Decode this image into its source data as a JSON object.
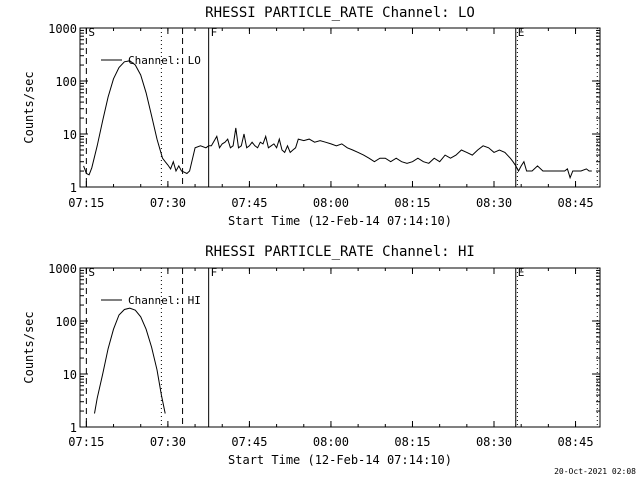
{
  "footer": {
    "timestamp": "20-Oct-2021 02:08"
  },
  "chart_data": [
    {
      "type": "line",
      "title": "RHESSI PARTICLE_RATE Channel: LO",
      "xlabel": "Start Time (12-Feb-14 07:14:10)",
      "ylabel": "Counts/sec",
      "ylog": true,
      "xlim": [
        -0.17,
        95.5
      ],
      "ylim": [
        1,
        1000
      ],
      "xtick_positions": [
        1,
        16,
        31,
        46,
        61,
        76,
        91
      ],
      "xtick_labels": [
        "07:15",
        "07:30",
        "07:45",
        "08:00",
        "08:15",
        "08:30",
        "08:45"
      ],
      "ytick_values": [
        1,
        10,
        100,
        1000
      ],
      "ytick_labels": [
        "1",
        "10",
        "100",
        "1000"
      ],
      "legend": {
        "label": "Channel: LO",
        "position": "top-left"
      },
      "markers": [
        {
          "x": 1.0,
          "style": "dashed",
          "label": "S"
        },
        {
          "x": 14.8,
          "style": "dotted",
          "label": ""
        },
        {
          "x": 18.7,
          "style": "dashed",
          "label": ""
        },
        {
          "x": 23.5,
          "style": "solid",
          "label": "F"
        },
        {
          "x": 80.0,
          "style": "solid",
          "label": "E"
        },
        {
          "x": 80.3,
          "style": "dotted",
          "label": ""
        },
        {
          "x": 95.0,
          "style": "dotted",
          "label": ""
        }
      ],
      "series": [
        {
          "name": "Channel: LO",
          "x": [
            0.5,
            1.0,
            1.5,
            2.0,
            3.0,
            4.0,
            5.0,
            6.0,
            7.0,
            8.0,
            9.0,
            10.0,
            11.0,
            12.0,
            13.0,
            14.0,
            15.0,
            15.5,
            16.0,
            16.5,
            17.0,
            17.5,
            18.0,
            18.5,
            19.0,
            19.5,
            20.0,
            21.0,
            22.0,
            23.0,
            23.5,
            24.0,
            25.0,
            25.5,
            26.0,
            26.5,
            27.0,
            27.5,
            28.0,
            28.5,
            29.0,
            29.5,
            30.0,
            30.5,
            31.0,
            31.5,
            32.0,
            32.5,
            33.0,
            33.5,
            34.0,
            34.5,
            35.0,
            35.5,
            36.0,
            36.5,
            37.0,
            37.5,
            38.0,
            38.5,
            39.0,
            39.5,
            40.0,
            41.0,
            42.0,
            43.0,
            44.0,
            45.0,
            46.0,
            47.0,
            48.0,
            49.0,
            50.0,
            51.0,
            52.0,
            53.0,
            54.0,
            55.0,
            56.0,
            57.0,
            58.0,
            59.0,
            60.0,
            61.0,
            62.0,
            63.0,
            64.0,
            65.0,
            66.0,
            67.0,
            68.0,
            69.0,
            70.0,
            71.0,
            72.0,
            73.0,
            74.0,
            75.0,
            76.0,
            77.0,
            78.0,
            79.0,
            79.5,
            80.0,
            80.5,
            81.0,
            81.5,
            82.0,
            83.0,
            84.0,
            85.0,
            86.0,
            87.0,
            88.0,
            89.0,
            89.5,
            90.0,
            90.5,
            91.0,
            92.0,
            93.0,
            93.5,
            94.0
          ],
          "y": [
            2.5,
            1.8,
            1.7,
            2.3,
            6,
            18,
            50,
            110,
            180,
            230,
            240,
            200,
            130,
            60,
            22,
            8,
            3.5,
            3.0,
            2.6,
            2.2,
            3.0,
            2.0,
            2.5,
            2.0,
            1.9,
            1.8,
            2.0,
            5.5,
            6.0,
            5.5,
            6.0,
            6.0,
            9.0,
            5.5,
            6.5,
            7.0,
            8.0,
            5.5,
            6.0,
            13.0,
            5.5,
            6.0,
            10.0,
            5.5,
            6.0,
            7.0,
            6.0,
            5.5,
            7.0,
            6.5,
            9.0,
            5.5,
            6.0,
            6.5,
            5.5,
            8.0,
            5.0,
            4.5,
            6.0,
            4.5,
            5.0,
            5.5,
            8.0,
            7.5,
            8.0,
            7.0,
            7.5,
            7.0,
            6.5,
            6.0,
            6.5,
            5.5,
            5.0,
            4.5,
            4.0,
            3.5,
            3.0,
            3.5,
            3.5,
            3.0,
            3.5,
            3.0,
            2.8,
            3.0,
            3.5,
            3.0,
            2.8,
            3.5,
            3.0,
            4.0,
            3.5,
            4.0,
            5.0,
            4.5,
            4.0,
            5.0,
            6.0,
            5.5,
            4.5,
            5.0,
            4.5,
            3.5,
            3.0,
            2.5,
            2.0,
            2.5,
            3.0,
            2.0,
            2.0,
            2.5,
            2.0,
            2.0,
            2.0,
            2.0,
            2.0,
            2.2,
            1.5,
            2.0,
            2.0,
            2.0,
            2.2,
            2.0,
            2.0
          ]
        }
      ]
    },
    {
      "type": "line",
      "title": "RHESSI PARTICLE_RATE Channel: HI",
      "xlabel": "Start Time (12-Feb-14 07:14:10)",
      "ylabel": "Counts/sec",
      "ylog": true,
      "xlim": [
        -0.17,
        95.5
      ],
      "ylim": [
        1,
        1000
      ],
      "xtick_positions": [
        1,
        16,
        31,
        46,
        61,
        76,
        91
      ],
      "xtick_labels": [
        "07:15",
        "07:30",
        "07:45",
        "08:00",
        "08:15",
        "08:30",
        "08:45"
      ],
      "ytick_values": [
        1,
        10,
        100,
        1000
      ],
      "ytick_labels": [
        "1",
        "10",
        "100",
        "1000"
      ],
      "legend": {
        "label": "Channel: HI",
        "position": "top-left"
      },
      "markers": [
        {
          "x": 1.0,
          "style": "dashed",
          "label": "S"
        },
        {
          "x": 14.8,
          "style": "dotted",
          "label": ""
        },
        {
          "x": 18.7,
          "style": "dashed",
          "label": ""
        },
        {
          "x": 23.5,
          "style": "solid",
          "label": "F"
        },
        {
          "x": 80.0,
          "style": "solid",
          "label": "E"
        },
        {
          "x": 80.3,
          "style": "dotted",
          "label": ""
        },
        {
          "x": 95.0,
          "style": "dotted",
          "label": ""
        }
      ],
      "series": [
        {
          "name": "Channel: HI",
          "x": [
            2.5,
            3.0,
            4.0,
            5.0,
            6.0,
            7.0,
            8.0,
            9.0,
            10.0,
            11.0,
            12.0,
            13.0,
            14.0,
            14.8,
            15.5
          ],
          "y": [
            1.8,
            3.5,
            10,
            30,
            70,
            130,
            165,
            175,
            160,
            120,
            70,
            32,
            12,
            4,
            1.8
          ]
        }
      ]
    }
  ]
}
